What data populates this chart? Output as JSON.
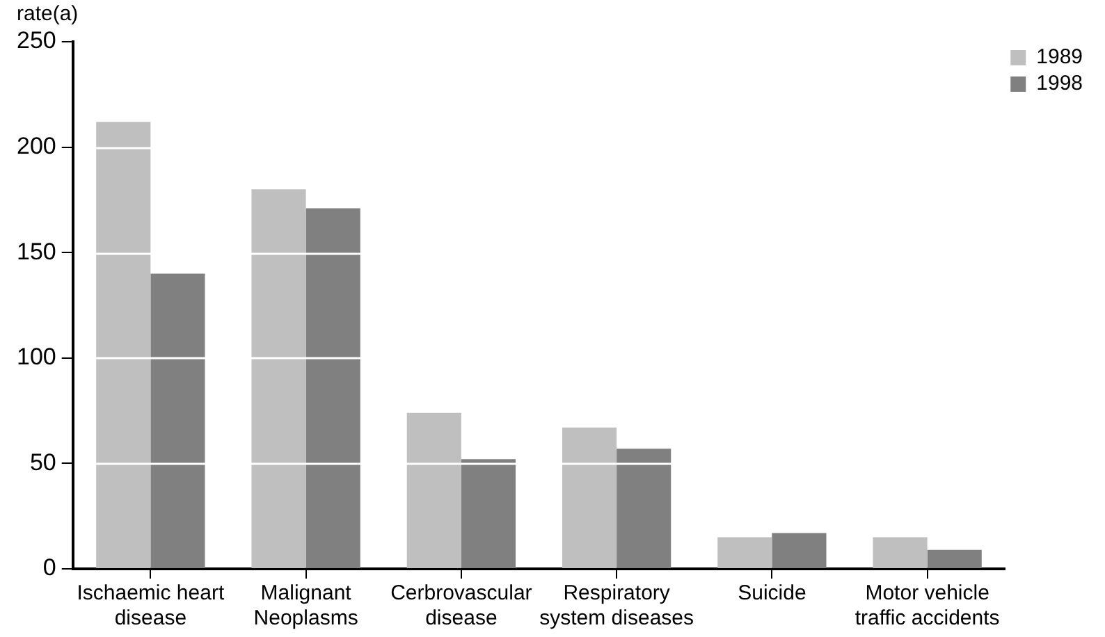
{
  "chart_data": {
    "type": "bar",
    "ylabel": "rate(a)",
    "categories": [
      "Ischaemic heart disease",
      "Malignant Neoplasms",
      "Cerbrovascular disease",
      "Respiratory system diseases",
      "Suicide",
      "Motor vehicle traffic accidents"
    ],
    "series": [
      {
        "name": "1989",
        "color": "#bfbfbf",
        "values": [
          212,
          180,
          74,
          67,
          15,
          15
        ]
      },
      {
        "name": "1998",
        "color": "#808080",
        "values": [
          140,
          171,
          52,
          57,
          17,
          9
        ]
      }
    ],
    "ylim": [
      0,
      250
    ],
    "yticks": [
      0,
      50,
      100,
      150,
      200,
      250
    ],
    "grid": "y",
    "legend": "top right"
  }
}
